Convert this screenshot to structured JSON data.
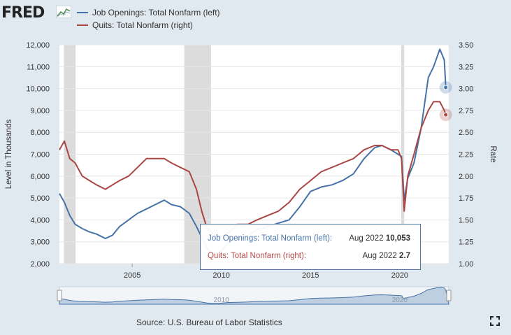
{
  "brand": {
    "logo_text": "FRED"
  },
  "colors": {
    "openings": "#4572a7",
    "quits": "#aa4643",
    "recession": "#dcdcdc",
    "background": "#e1e9f0"
  },
  "chart_data": {
    "type": "line",
    "xlabel": "",
    "ylabel_left": "Level in Thousands",
    "ylabel_right": "Rate",
    "ylim_left": [
      2000,
      12000
    ],
    "ylim_right": [
      1.0,
      3.5
    ],
    "xlim": [
      2000.92,
      2022.75
    ],
    "left_ticks": [
      2000,
      3000,
      4000,
      5000,
      6000,
      7000,
      8000,
      9000,
      10000,
      11000,
      12000
    ],
    "left_tick_labels": [
      "2,000",
      "3,000",
      "4,000",
      "5,000",
      "6,000",
      "7,000",
      "8,000",
      "9,000",
      "10,000",
      "11,000",
      "12,000"
    ],
    "right_ticks": [
      1.0,
      1.25,
      1.5,
      1.75,
      2.0,
      2.25,
      2.5,
      2.75,
      3.0,
      3.25,
      3.5
    ],
    "right_tick_labels": [
      "1.00",
      "1.25",
      "1.50",
      "1.75",
      "2.00",
      "2.25",
      "2.50",
      "2.75",
      "3.00",
      "3.25",
      "3.50"
    ],
    "x_ticks": [
      2005,
      2010,
      2015,
      2020
    ],
    "x_tick_labels": [
      "2005",
      "2010",
      "2015",
      "2020"
    ],
    "grid": "horizontal",
    "legend_position": "top-left",
    "recessions": [
      [
        2001.17,
        2001.83
      ],
      [
        2007.92,
        2009.42
      ],
      [
        2020.08,
        2020.25
      ]
    ],
    "series": [
      {
        "name": "Job Openings: Total Nonfarm (left)",
        "axis": "left",
        "x": [
          2000.92,
          2001.2,
          2001.5,
          2001.8,
          2002.2,
          2002.6,
          2003.0,
          2003.5,
          2003.9,
          2004.3,
          2004.8,
          2005.3,
          2005.8,
          2006.3,
          2006.8,
          2007.2,
          2007.7,
          2008.2,
          2008.6,
          2008.9,
          2009.2,
          2009.5,
          2009.9,
          2010.4,
          2010.9,
          2011.5,
          2012.0,
          2012.6,
          2013.2,
          2013.8,
          2014.4,
          2015.0,
          2015.6,
          2016.2,
          2016.8,
          2017.4,
          2018.0,
          2018.6,
          2019.0,
          2019.5,
          2019.9,
          2020.1,
          2020.25,
          2020.45,
          2020.8,
          2021.2,
          2021.6,
          2021.9,
          2022.25,
          2022.5,
          2022.58
        ],
        "values": [
          5200,
          4800,
          4200,
          3800,
          3600,
          3450,
          3350,
          3150,
          3300,
          3700,
          4000,
          4300,
          4500,
          4700,
          4900,
          4700,
          4600,
          4300,
          3700,
          3200,
          2700,
          2400,
          2500,
          3000,
          3100,
          3300,
          3550,
          3700,
          3850,
          4000,
          4600,
          5300,
          5500,
          5600,
          5800,
          6100,
          6800,
          7300,
          7400,
          7200,
          7000,
          6900,
          4900,
          5900,
          6600,
          8200,
          10500,
          11000,
          11800,
          11300,
          10053
        ]
      },
      {
        "name": "Quits: Total Nonfarm (right)",
        "axis": "right",
        "x": [
          2000.92,
          2001.2,
          2001.5,
          2001.8,
          2002.2,
          2002.6,
          2003.0,
          2003.5,
          2003.9,
          2004.3,
          2004.8,
          2005.3,
          2005.8,
          2006.3,
          2006.8,
          2007.2,
          2007.7,
          2008.2,
          2008.6,
          2008.9,
          2009.2,
          2009.5,
          2009.9,
          2010.4,
          2010.9,
          2011.5,
          2012.0,
          2012.6,
          2013.2,
          2013.8,
          2014.4,
          2015.0,
          2015.6,
          2016.2,
          2016.8,
          2017.4,
          2018.0,
          2018.6,
          2019.0,
          2019.5,
          2019.9,
          2020.1,
          2020.25,
          2020.45,
          2020.8,
          2021.2,
          2021.6,
          2021.9,
          2022.25,
          2022.5,
          2022.58
        ],
        "values": [
          2.3,
          2.4,
          2.2,
          2.15,
          2.0,
          1.95,
          1.9,
          1.85,
          1.9,
          1.95,
          2.0,
          2.1,
          2.2,
          2.2,
          2.2,
          2.15,
          2.1,
          2.05,
          1.85,
          1.6,
          1.4,
          1.35,
          1.3,
          1.35,
          1.45,
          1.45,
          1.5,
          1.55,
          1.6,
          1.7,
          1.85,
          1.95,
          2.05,
          2.1,
          2.15,
          2.2,
          2.3,
          2.35,
          2.35,
          2.3,
          2.3,
          2.2,
          1.6,
          2.0,
          2.25,
          2.55,
          2.75,
          2.85,
          2.85,
          2.75,
          2.7
        ]
      }
    ],
    "navigator_labels": [
      "2010",
      "2020"
    ]
  },
  "legend": {
    "items": [
      {
        "label": "Job Openings: Total Nonfarm (left)"
      },
      {
        "label": "Quits: Total Nonfarm (right)"
      }
    ]
  },
  "tooltip": {
    "row1_label": "Job Openings: Total Nonfarm (left):",
    "row1_date": "Aug 2022",
    "row1_value": "10,053",
    "row2_label": "Quits: Total Nonfarm (right):",
    "row2_date": "Aug 2022",
    "row2_value": "2.7"
  },
  "footer": {
    "source": "Source: U.S. Bureau of Labor Statistics"
  }
}
